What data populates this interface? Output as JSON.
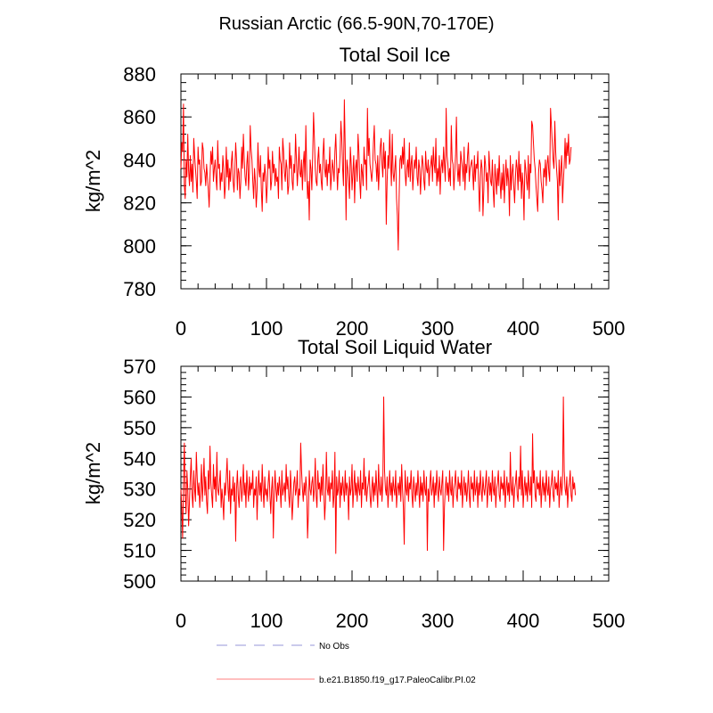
{
  "main_title": "Russian Arctic (66.5-90N,70-170E)",
  "chart_data": [
    {
      "type": "line",
      "title": "Total Soil Ice",
      "xlabel": "",
      "ylabel": "kg/m^2",
      "xlim": [
        0,
        500
      ],
      "ylim": [
        780,
        880
      ],
      "xticks": [
        0,
        100,
        200,
        300,
        400,
        500
      ],
      "yticks": [
        780,
        800,
        820,
        840,
        860,
        880
      ],
      "x_minor_step": 20,
      "y_minor_step": 4,
      "series": [
        {
          "name": "b.e21.B1850.f19_g17.PaleoCalibr.PI.02",
          "color": "#ff0000",
          "x_start": 0,
          "x_step": 1,
          "values": [
            836,
            848,
            844,
            866,
            828,
            822,
            840,
            832,
            852,
            835,
            828,
            842,
            830,
            838,
            825,
            850,
            842,
            836,
            830,
            822,
            846,
            838,
            840,
            828,
            830,
            848,
            845,
            836,
            834,
            828,
            838,
            832,
            826,
            818,
            832,
            844,
            838,
            846,
            830,
            836,
            840,
            832,
            826,
            849,
            836,
            838,
            826,
            834,
            830,
            842,
            836,
            822,
            828,
            846,
            832,
            840,
            826,
            836,
            830,
            839,
            844,
            830,
            825,
            834,
            848,
            840,
            826,
            836,
            834,
            822,
            830,
            846,
            836,
            852,
            840,
            832,
            828,
            838,
            844,
            826,
            834,
            856,
            845,
            840,
            830,
            822,
            836,
            830,
            818,
            826,
            848,
            836,
            832,
            842,
            826,
            816,
            834,
            830,
            838,
            832,
            820,
            828,
            846,
            836,
            840,
            826,
            830,
            844,
            834,
            838,
            828,
            836,
            830,
            832,
            822,
            846,
            840,
            838,
            826,
            850,
            844,
            834,
            830,
            840,
            836,
            824,
            828,
            848,
            836,
            842,
            830,
            826,
            838,
            834,
            852,
            840,
            828,
            836,
            846,
            834,
            832,
            840,
            826,
            838,
            844,
            830,
            856,
            836,
            822,
            830,
            812,
            840,
            836,
            826,
            842,
            862,
            850,
            836,
            830,
            828,
            840,
            846,
            834,
            838,
            830,
            826,
            842,
            850,
            836,
            832,
            840,
            828,
            838,
            834,
            846,
            826,
            832,
            840,
            836,
            830,
            844,
            852,
            838,
            826,
            836,
            834,
            842,
            858,
            850,
            836,
            828,
            868,
            846,
            812,
            840,
            836,
            830,
            822,
            846,
            838,
            826,
            834,
            842,
            820,
            836,
            840,
            830,
            852,
            844,
            830,
            822,
            838,
            834,
            828,
            846,
            838,
            840,
            826,
            864,
            842,
            850,
            838,
            834,
            830,
            836,
            848,
            856,
            840,
            838,
            830,
            842,
            826,
            836,
            846,
            850,
            838,
            832,
            848,
            836,
            844,
            810,
            830,
            842,
            836,
            854,
            840,
            828,
            852,
            834,
            830,
            836,
            842,
            822,
            814,
            798,
            822,
            840,
            842,
            836,
            846,
            838,
            850,
            834,
            828,
            836,
            840,
            832,
            848,
            830,
            838,
            842,
            826,
            834,
            840,
            836,
            846,
            832,
            828,
            840,
            836,
            824,
            834,
            842,
            838,
            830,
            826,
            844,
            836,
            834,
            840,
            828,
            836,
            838,
            842,
            830,
            846,
            838,
            834,
            850,
            828,
            836,
            830,
            842,
            824,
            836,
            840,
            834,
            846,
            838,
            830,
            864,
            842,
            838,
            830,
            836,
            828,
            856,
            840,
            838,
            826,
            834,
            842,
            860,
            836,
            830,
            838,
            828,
            844,
            840,
            836,
            830,
            846,
            826,
            838,
            834,
            842,
            848,
            830,
            836,
            838,
            840,
            834,
            826,
            842,
            830,
            838,
            836,
            844,
            828,
            816,
            832,
            840,
            836,
            814,
            826,
            842,
            838,
            830,
            834,
            820,
            844,
            836,
            830,
            828,
            840,
            826,
            818,
            838,
            832,
            824,
            836,
            828,
            842,
            830,
            822,
            834,
            826,
            838,
            820,
            832,
            840,
            828,
            836,
            830,
            814,
            842,
            826,
            834,
            838,
            828,
            820,
            832,
            840,
            836,
            826,
            844,
            830,
            838,
            822,
            834,
            828,
            812,
            840,
            836,
            830,
            826,
            842,
            822,
            838,
            834,
            858,
            856,
            848,
            840,
            836,
            828,
            822,
            816,
            834,
            840,
            838,
            830,
            826,
            820,
            836,
            832,
            840,
            828,
            838,
            842,
            834,
            830,
            864,
            856,
            848,
            840,
            836,
            858,
            844,
            836,
            830,
            812,
            840,
            828,
            836,
            842,
            820,
            830,
            838,
            850,
            836,
            848,
            842,
            852,
            838,
            840,
            846
          ]
        }
      ]
    },
    {
      "type": "line",
      "title": "Total Soil Liquid Water",
      "xlabel": "",
      "ylabel": "kg/m^2",
      "xlim": [
        0,
        500
      ],
      "ylim": [
        500,
        570
      ],
      "xticks": [
        0,
        100,
        200,
        300,
        400,
        500
      ],
      "yticks": [
        500,
        510,
        520,
        530,
        540,
        550,
        560,
        570
      ],
      "x_minor_step": 20,
      "y_minor_step": 2,
      "series": [
        {
          "name": "b.e21.B1850.f19_g17.PaleoCalibr.PI.02",
          "color": "#ff0000",
          "x_start": 0,
          "x_step": 1,
          "values": [
            530,
            524,
            514,
            532,
            545,
            528,
            522,
            536,
            530,
            518,
            526,
            534,
            540,
            528,
            524,
            536,
            530,
            526,
            542,
            534,
            528,
            532,
            524,
            530,
            538,
            526,
            532,
            540,
            528,
            534,
            526,
            522,
            536,
            530,
            544,
            532,
            528,
            524,
            538,
            530,
            534,
            526,
            542,
            530,
            528,
            532,
            536,
            524,
            530,
            526,
            520,
            532,
            528,
            534,
            540,
            530,
            526,
            536,
            522,
            530,
            528,
            534,
            526,
            532,
            513,
            530,
            536,
            528,
            524,
            532,
            534,
            526,
            530,
            538,
            528,
            532,
            524,
            536,
            530,
            526,
            534,
            528,
            532,
            530,
            536,
            524,
            530,
            528,
            534,
            520,
            530,
            536,
            528,
            532,
            526,
            538,
            530,
            524,
            534,
            528,
            530,
            526,
            532,
            536,
            528,
            522,
            530,
            534,
            514,
            528,
            536,
            530,
            526,
            532,
            528,
            534,
            530,
            524,
            536,
            528,
            530,
            532,
            526,
            538,
            530,
            534,
            528,
            524,
            536,
            530,
            520,
            526,
            532,
            534,
            528,
            530,
            536,
            524,
            530,
            528,
            545,
            536,
            530,
            526,
            532,
            528,
            534,
            530,
            514,
            522,
            536,
            530,
            528,
            532,
            534,
            526,
            530,
            540,
            528,
            524,
            536,
            530,
            532,
            526,
            534,
            528,
            538,
            530,
            520,
            526,
            542,
            530,
            528,
            534,
            526,
            532,
            530,
            536,
            524,
            528,
            542,
            509,
            534,
            528,
            530,
            536,
            524,
            532,
            528,
            534,
            530,
            526,
            536,
            528,
            532,
            530,
            520,
            534,
            528,
            530,
            538,
            524,
            530,
            536,
            528,
            532,
            526,
            534,
            530,
            528,
            536,
            524,
            532,
            530,
            540,
            528,
            534,
            526,
            530,
            532,
            536,
            528,
            524,
            530,
            534,
            526,
            532,
            528,
            536,
            530,
            524,
            538,
            530,
            528,
            534,
            526,
            532,
            560,
            536,
            530,
            528,
            534,
            524,
            530,
            536,
            528,
            532,
            526,
            534,
            530,
            528,
            536,
            524,
            530,
            532,
            528,
            534,
            526,
            538,
            530,
            524,
            512,
            536,
            530,
            528,
            534,
            526,
            532,
            530,
            536,
            528,
            524,
            534,
            530,
            526,
            532,
            528,
            536,
            530,
            524,
            534,
            528,
            532,
            526,
            536,
            530,
            528,
            534,
            510,
            530,
            526,
            532,
            536,
            528,
            530,
            534,
            524,
            532,
            528,
            536,
            530,
            526,
            534,
            530,
            528,
            532,
            536,
            510,
            524,
            530,
            534,
            528,
            532,
            526,
            536,
            530,
            528,
            534,
            524,
            530,
            532,
            536,
            528,
            526,
            534,
            530,
            532,
            528,
            536,
            524,
            530,
            534,
            528,
            532,
            526,
            530,
            536,
            528,
            524,
            534,
            530,
            532,
            526,
            536,
            528,
            530,
            534,
            524,
            532,
            528,
            536,
            530,
            526,
            534,
            530,
            528,
            532,
            536,
            524,
            530,
            534,
            528,
            532,
            526,
            536,
            530,
            528,
            534,
            524,
            530,
            532,
            536,
            528,
            526,
            534,
            530,
            532,
            528,
            536,
            524,
            530,
            534,
            528,
            532,
            526,
            542,
            530,
            528,
            534,
            524,
            530,
            532,
            536,
            528,
            526,
            534,
            530,
            544,
            528,
            536,
            524,
            530,
            534,
            528,
            532,
            526,
            536,
            530,
            528,
            534,
            524,
            548,
            532,
            536,
            528,
            526,
            534,
            530,
            532,
            528,
            536,
            524,
            530,
            534,
            528,
            532,
            526,
            536,
            530,
            528,
            534,
            524,
            530,
            532,
            536,
            528,
            526,
            534,
            530,
            532,
            528,
            536,
            524,
            530,
            534,
            528,
            532,
            560,
            536,
            530,
            528,
            534,
            524,
            530,
            532,
            536,
            528,
            526,
            534,
            530,
            532,
            528
          ]
        }
      ]
    }
  ],
  "legend": [
    {
      "label": "No Obs",
      "color": "#aaaae0",
      "style": "dashed"
    },
    {
      "label": "b.e21.B1850.f19_g17.PaleoCalibr.PI.02",
      "color": "#ff9999",
      "style": "solid"
    }
  ]
}
